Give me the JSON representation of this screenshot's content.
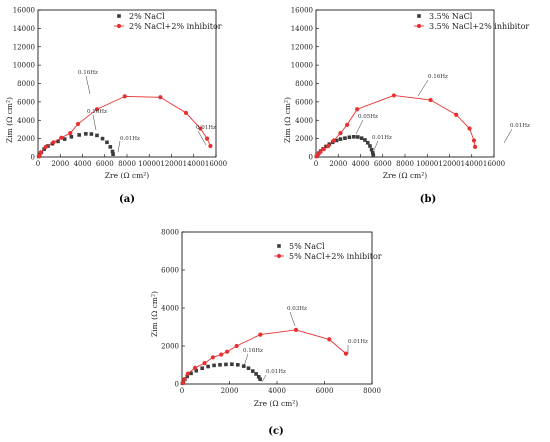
{
  "chart_data": [
    {
      "type": "scatter",
      "panel_label": "(a)",
      "xlabel": "Zre (Ω cm²)",
      "ylabel": "Zim (Ω cm²)",
      "xlim": [
        0,
        16000
      ],
      "ylim": [
        0,
        16000
      ],
      "xticks": [
        "0",
        "2000",
        "4000",
        "6000",
        "8000",
        "10000",
        "12000",
        "14000",
        "16000"
      ],
      "yticks": [
        "0",
        "2000",
        "4000",
        "6000",
        "8000",
        "10000",
        "12000",
        "14000",
        "16000"
      ],
      "legend_position": "top-right",
      "series": [
        {
          "name": "2% NaCl",
          "color": "#3a3a3a",
          "marker": "square",
          "line": false,
          "points": [
            [
              60,
              60
            ],
            [
              150,
              260
            ],
            [
              300,
              500
            ],
            [
              550,
              850
            ],
            [
              900,
              1200
            ],
            [
              1300,
              1450
            ],
            [
              1800,
              1700
            ],
            [
              2400,
              1950
            ],
            [
              3000,
              2200
            ],
            [
              3700,
              2400
            ],
            [
              4300,
              2520
            ],
            [
              4800,
              2500
            ],
            [
              5300,
              2350
            ],
            [
              5800,
              2000
            ],
            [
              6200,
              1600
            ],
            [
              6500,
              1100
            ],
            [
              6700,
              600
            ],
            [
              6750,
              300
            ]
          ]
        },
        {
          "name": "2% NaCl+2% inhibitor",
          "color": "#e83030",
          "marker": "circle",
          "line": true,
          "points": [
            [
              80,
              100
            ],
            [
              250,
              500
            ],
            [
              700,
              1100
            ],
            [
              1400,
              1600
            ],
            [
              2100,
              2100
            ],
            [
              2900,
              2600
            ],
            [
              3600,
              3600
            ],
            [
              5300,
              5200
            ],
            [
              7800,
              6600
            ],
            [
              11000,
              6500
            ],
            [
              13300,
              4800
            ],
            [
              14600,
              3100
            ],
            [
              15200,
              2000
            ],
            [
              15500,
              1200
            ]
          ]
        }
      ],
      "annotations": [
        "0.16Hz",
        "0.16Hz",
        "0.01Hz",
        "0.01Hz"
      ]
    },
    {
      "type": "scatter",
      "panel_label": "(b)",
      "xlabel": "Zre (Ω cm²)",
      "ylabel": "Zim (Ω cm²)",
      "xlim": [
        0,
        16000
      ],
      "ylim": [
        0,
        16000
      ],
      "xticks": [
        "0",
        "2000",
        "4000",
        "6000",
        "8000",
        "10000",
        "12000",
        "14000",
        "16000"
      ],
      "yticks": [
        "0",
        "2000",
        "4000",
        "6000",
        "8000",
        "10000",
        "12000",
        "14000",
        "16000"
      ],
      "legend_position": "top-right",
      "series": [
        {
          "name": "3.5% NaCl",
          "color": "#3a3a3a",
          "marker": "square",
          "line": false,
          "points": [
            [
              40,
              60
            ],
            [
              120,
              200
            ],
            [
              250,
              420
            ],
            [
              420,
              650
            ],
            [
              650,
              900
            ],
            [
              900,
              1150
            ],
            [
              1200,
              1400
            ],
            [
              1500,
              1600
            ],
            [
              1850,
              1800
            ],
            [
              2200,
              1950
            ],
            [
              2600,
              2050
            ],
            [
              3000,
              2150
            ],
            [
              3400,
              2200
            ],
            [
              3750,
              2180
            ],
            [
              4100,
              2050
            ],
            [
              4400,
              1850
            ],
            [
              4650,
              1550
            ],
            [
              4850,
              1200
            ],
            [
              5000,
              800
            ],
            [
              5100,
              450
            ],
            [
              5150,
              200
            ]
          ]
        },
        {
          "name": "3.5% NaCl+2% inhibitor",
          "color": "#e83030",
          "marker": "circle",
          "line": true,
          "points": [
            [
              50,
              80
            ],
            [
              200,
              300
            ],
            [
              400,
              550
            ],
            [
              700,
              850
            ],
            [
              1100,
              1200
            ],
            [
              1600,
              1800
            ],
            [
              2200,
              2600
            ],
            [
              2800,
              3500
            ],
            [
              3700,
              5200
            ],
            [
              7000,
              6700
            ],
            [
              10300,
              6200
            ],
            [
              12600,
              4600
            ],
            [
              13800,
              3100
            ],
            [
              14200,
              1800
            ],
            [
              14300,
              1100
            ]
          ]
        }
      ],
      "annotations": [
        "0.16Hz",
        "0.05Hz",
        "0.01Hz",
        "0.01Hz"
      ]
    },
    {
      "type": "scatter",
      "panel_label": "(c)",
      "xlabel": "Zre (Ω cm²)",
      "ylabel": "Zim (Ω cm²)",
      "xlim": [
        0,
        8000
      ],
      "ylim": [
        0,
        8000
      ],
      "xticks": [
        "0",
        "2000",
        "4000",
        "6000",
        "8000"
      ],
      "yticks": [
        "0",
        "2000",
        "4000",
        "6000",
        "8000"
      ],
      "legend_position": "top-right",
      "series": [
        {
          "name": "5% NaCl",
          "color": "#3a3a3a",
          "marker": "square",
          "line": false,
          "points": [
            [
              20,
              40
            ],
            [
              60,
              130
            ],
            [
              120,
              250
            ],
            [
              220,
              400
            ],
            [
              380,
              560
            ],
            [
              600,
              700
            ],
            [
              850,
              830
            ],
            [
              1100,
              920
            ],
            [
              1350,
              980
            ],
            [
              1600,
              1010
            ],
            [
              1850,
              1030
            ],
            [
              2100,
              1040
            ],
            [
              2350,
              1010
            ],
            [
              2600,
              940
            ],
            [
              2800,
              830
            ],
            [
              2980,
              680
            ],
            [
              3120,
              530
            ],
            [
              3230,
              380
            ],
            [
              3290,
              250
            ]
          ]
        },
        {
          "name": "5% NaCl+2% inhibitor",
          "color": "#e83030",
          "marker": "circle",
          "line": true,
          "points": [
            [
              30,
              50
            ],
            [
              100,
              250
            ],
            [
              250,
              550
            ],
            [
              550,
              850
            ],
            [
              950,
              1100
            ],
            [
              1300,
              1400
            ],
            [
              1650,
              1550
            ],
            [
              1900,
              1700
            ],
            [
              2300,
              2000
            ],
            [
              3300,
              2600
            ],
            [
              4800,
              2850
            ],
            [
              6200,
              2350
            ],
            [
              6900,
              1600
            ]
          ]
        }
      ],
      "annotations": [
        "0.16Hz",
        "0.01Hz",
        "0.03Hz",
        "0.01Hz"
      ]
    }
  ]
}
